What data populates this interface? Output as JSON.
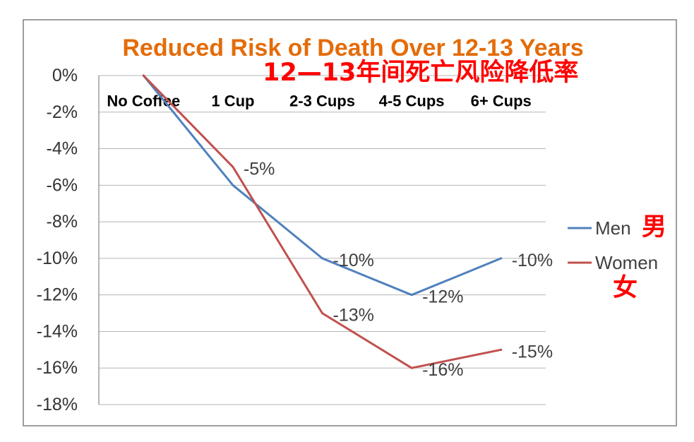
{
  "chart_data": {
    "type": "line",
    "title": "Reduced Risk of Death Over 12-13 Years",
    "categories": [
      "No Coffee",
      "1 Cup",
      "2-3 Cups",
      "4-5 Cups",
      "6+ Cups"
    ],
    "series": [
      {
        "name": "Men",
        "color": "#4F81BD",
        "values": [
          0,
          -6,
          -10,
          -12,
          -10
        ],
        "data_labels": [
          null,
          null,
          "-10%",
          "-12%",
          "-10%"
        ]
      },
      {
        "name": "Women",
        "color": "#C0504D",
        "values": [
          0,
          -5,
          -13,
          -16,
          -15
        ],
        "data_labels": [
          null,
          "-5%",
          "-13%",
          "-16%",
          "-15%"
        ]
      }
    ],
    "ylim": [
      -18,
      0
    ],
    "yticks": [
      0,
      -2,
      -4,
      -6,
      -8,
      -10,
      -12,
      -14,
      -16,
      -18
    ],
    "ytick_labels": [
      "0%",
      "-2%",
      "-4%",
      "-6%",
      "-8%",
      "-10%",
      "-12%",
      "-14%",
      "-16%",
      "-18%"
    ],
    "x_axis": "top",
    "grid": true,
    "legend": "right"
  },
  "annotations": {
    "title_zh": "12—13年间死亡风险降低率",
    "men_zh": "男",
    "women_zh": "女"
  },
  "colors": {
    "title": "#E46C0A",
    "annotation": "#FF0000"
  }
}
